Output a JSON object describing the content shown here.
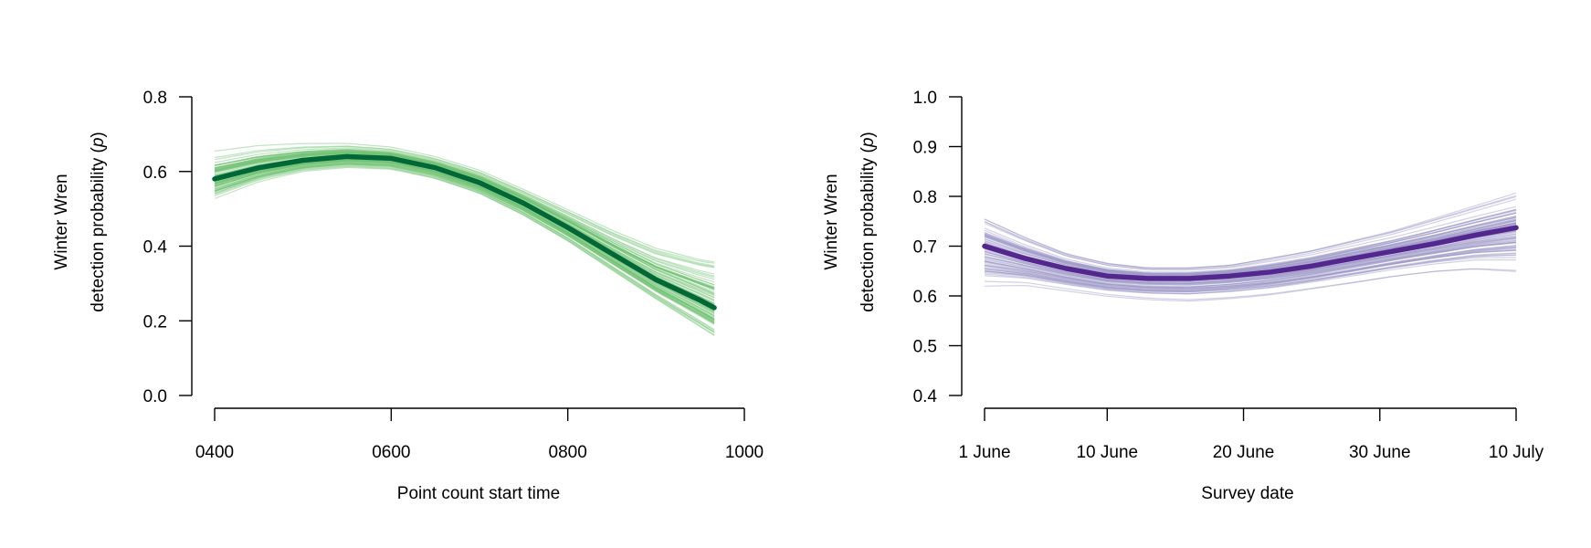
{
  "chart_data": [
    {
      "type": "line",
      "title": "",
      "xlabel": "Point count start time",
      "ylabel": [
        "Winter Wren",
        "detection probability  (p)"
      ],
      "ylabel_line1": "Winter Wren",
      "ylabel_line2_prefix": "detection probability  (",
      "ylabel_italic": "p",
      "ylabel_line2_suffix": ")",
      "xlim": [
        400,
        1000
      ],
      "ylim": [
        0.0,
        0.8
      ],
      "x_ticks": [
        400,
        600,
        800,
        1000
      ],
      "x_tick_labels": [
        "0400",
        "0600",
        "0800",
        "1000"
      ],
      "y_ticks": [
        0.0,
        0.2,
        0.4,
        0.6,
        0.8
      ],
      "y_tick_labels": [
        "0.0",
        "0.2",
        "0.4",
        "0.6",
        "0.8"
      ],
      "grid": false,
      "legend": "none",
      "mean_color": "#006837",
      "band_color": "#74c476",
      "mean_curve": {
        "x": [
          400,
          450,
          500,
          550,
          600,
          650,
          700,
          750,
          800,
          850,
          900,
          950,
          966
        ],
        "y": [
          0.58,
          0.61,
          0.63,
          0.64,
          0.635,
          0.61,
          0.57,
          0.515,
          0.45,
          0.38,
          0.31,
          0.255,
          0.235
        ]
      },
      "band_upper": {
        "x": [
          400,
          450,
          500,
          550,
          600,
          650,
          700,
          750,
          800,
          850,
          900,
          950,
          966
        ],
        "y": [
          0.66,
          0.675,
          0.68,
          0.68,
          0.67,
          0.645,
          0.61,
          0.56,
          0.51,
          0.46,
          0.42,
          0.4,
          0.4
        ]
      },
      "band_lower": {
        "x": [
          400,
          450,
          500,
          550,
          600,
          650,
          700,
          750,
          800,
          850,
          900,
          950,
          966
        ],
        "y": [
          0.51,
          0.56,
          0.59,
          0.6,
          0.595,
          0.57,
          0.53,
          0.47,
          0.4,
          0.32,
          0.24,
          0.16,
          0.135
        ]
      }
    },
    {
      "type": "line",
      "title": "",
      "xlabel": "Survey date",
      "ylabel": [
        "Winter Wren",
        "detection probability  (p)"
      ],
      "ylabel_line1": "Winter Wren",
      "ylabel_line2_prefix": "detection probability  (",
      "ylabel_italic": "p",
      "ylabel_line2_suffix": ")",
      "xlim": [
        "1 June",
        "10 July"
      ],
      "ylim": [
        0.4,
        1.0
      ],
      "x_ticks": [
        "1 June",
        "10 June",
        "20 June",
        "30 June",
        "10 July"
      ],
      "x_tick_labels": [
        "1 June",
        "10 June",
        "20 June",
        "30 June",
        "10 July"
      ],
      "y_ticks": [
        0.4,
        0.5,
        0.6,
        0.7,
        0.8,
        0.9,
        1.0
      ],
      "y_tick_labels": [
        "0.4",
        "0.5",
        "0.6",
        "0.7",
        "0.8",
        "0.9",
        "1.0"
      ],
      "grid": false,
      "legend": "none",
      "mean_color": "#54278f",
      "band_color": "#9e9ac8",
      "mean_curve": {
        "x": [
          "1 June",
          "4 June",
          "7 June",
          "10 June",
          "13 June",
          "16 June",
          "19 June",
          "22 June",
          "25 June",
          "28 June",
          "1 July",
          "4 July",
          "7 July",
          "10 July"
        ],
        "y": [
          0.7,
          0.675,
          0.655,
          0.64,
          0.635,
          0.635,
          0.64,
          0.648,
          0.66,
          0.675,
          0.69,
          0.705,
          0.722,
          0.737
        ]
      },
      "band_upper": {
        "x": [
          "1 June",
          "4 June",
          "7 June",
          "10 June",
          "13 June",
          "16 June",
          "19 June",
          "22 June",
          "25 June",
          "28 June",
          "1 July",
          "4 July",
          "7 July",
          "10 July"
        ],
        "y": [
          0.765,
          0.725,
          0.69,
          0.67,
          0.66,
          0.66,
          0.665,
          0.68,
          0.695,
          0.715,
          0.735,
          0.76,
          0.785,
          0.81
        ]
      },
      "band_lower": {
        "x": [
          "1 June",
          "4 June",
          "7 June",
          "10 June",
          "13 June",
          "16 June",
          "19 June",
          "22 June",
          "25 June",
          "28 June",
          "1 July",
          "4 July",
          "7 July",
          "10 July"
        ],
        "y": [
          0.61,
          0.615,
          0.605,
          0.595,
          0.588,
          0.585,
          0.59,
          0.598,
          0.61,
          0.622,
          0.635,
          0.645,
          0.65,
          0.645
        ]
      }
    }
  ]
}
